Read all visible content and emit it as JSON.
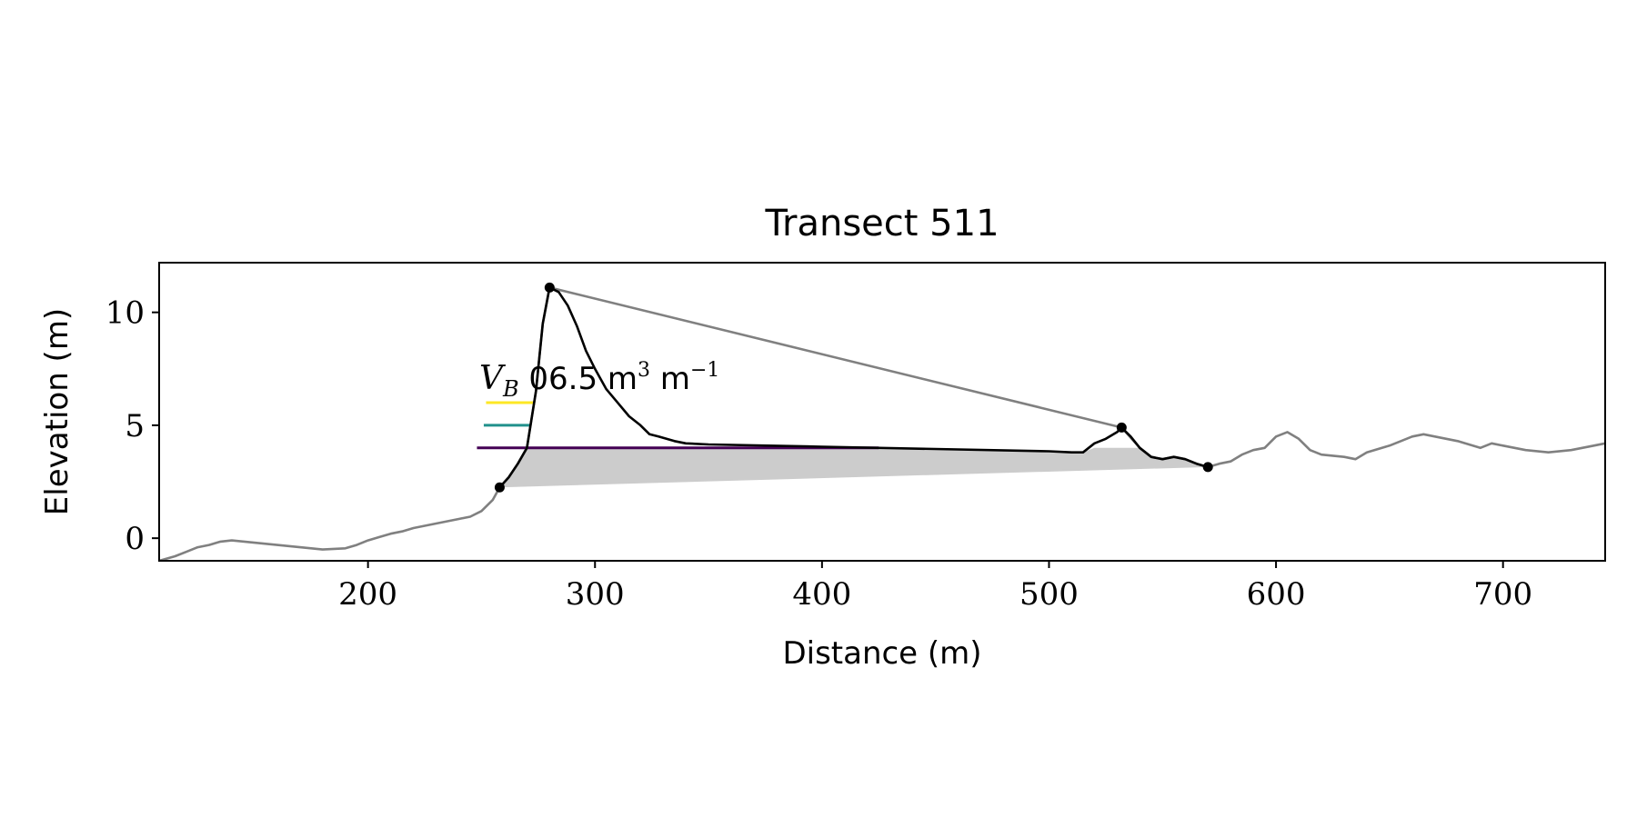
{
  "chart_data": {
    "type": "area",
    "title": "Transect 511",
    "xlabel": "Distance (m)",
    "ylabel": "Elevation (m)",
    "xlim": [
      108,
      745
    ],
    "ylim": [
      -1,
      12.2
    ],
    "xticks": [
      200,
      300,
      400,
      500,
      600,
      700
    ],
    "yticks": [
      0,
      5,
      10
    ],
    "xtick_labels": [
      "200",
      "300",
      "400",
      "500",
      "600",
      "700"
    ],
    "ytick_labels": [
      "0",
      "5",
      "10"
    ],
    "grid": false,
    "annotation": {
      "label": "V",
      "subscript": "B",
      "value_text": "06.5 m",
      "unit_exp1": "3",
      "unit_mid": "m",
      "unit_exp2": "−1",
      "x": 249,
      "y": 6.6
    },
    "colors": {
      "background_profile": "#808080",
      "dune_profile": "#000000",
      "below_base_fill": "#cccccc",
      "layer_top": "#fde725",
      "layer_mid": "#21918c",
      "layer_low": "#440154"
    },
    "levels": [
      {
        "y": 4.0,
        "x_start": 248,
        "color": "#440154"
      },
      {
        "y": 5.0,
        "x_start": 251,
        "color": "#21918c"
      },
      {
        "y": 6.0,
        "x_start": 252,
        "color": "#fde725"
      }
    ],
    "markers": [
      {
        "x": 258,
        "y": 2.25
      },
      {
        "x": 280,
        "y": 11.1
      },
      {
        "x": 532,
        "y": 4.9
      },
      {
        "x": 570,
        "y": 3.15
      }
    ],
    "background_profile": [
      [
        108,
        -1.0
      ],
      [
        115,
        -0.8
      ],
      [
        120,
        -0.6
      ],
      [
        125,
        -0.4
      ],
      [
        130,
        -0.3
      ],
      [
        135,
        -0.15
      ],
      [
        140,
        -0.1
      ],
      [
        150,
        -0.2
      ],
      [
        160,
        -0.3
      ],
      [
        170,
        -0.4
      ],
      [
        180,
        -0.5
      ],
      [
        190,
        -0.45
      ],
      [
        195,
        -0.3
      ],
      [
        200,
        -0.1
      ],
      [
        205,
        0.05
      ],
      [
        210,
        0.2
      ],
      [
        215,
        0.3
      ],
      [
        220,
        0.45
      ],
      [
        225,
        0.55
      ],
      [
        230,
        0.65
      ],
      [
        235,
        0.75
      ],
      [
        240,
        0.85
      ],
      [
        245,
        0.95
      ],
      [
        250,
        1.2
      ],
      [
        255,
        1.7
      ],
      [
        258,
        2.25
      ],
      [
        262,
        2.7
      ],
      [
        266,
        3.3
      ],
      [
        270,
        4.0
      ],
      [
        274,
        6.5
      ],
      [
        277,
        9.5
      ],
      [
        280,
        11.1
      ],
      [
        532,
        4.9
      ],
      [
        540,
        4.0
      ],
      [
        545,
        3.6
      ],
      [
        550,
        3.5
      ],
      [
        555,
        3.6
      ],
      [
        560,
        3.5
      ],
      [
        565,
        3.3
      ],
      [
        570,
        3.15
      ],
      [
        575,
        3.3
      ],
      [
        580,
        3.4
      ],
      [
        585,
        3.7
      ],
      [
        590,
        3.9
      ],
      [
        595,
        4.0
      ],
      [
        600,
        4.5
      ],
      [
        605,
        4.7
      ],
      [
        610,
        4.4
      ],
      [
        615,
        3.9
      ],
      [
        620,
        3.7
      ],
      [
        630,
        3.6
      ],
      [
        635,
        3.5
      ],
      [
        640,
        3.8
      ],
      [
        650,
        4.1
      ],
      [
        655,
        4.3
      ],
      [
        660,
        4.5
      ],
      [
        665,
        4.6
      ],
      [
        670,
        4.5
      ],
      [
        680,
        4.3
      ],
      [
        690,
        4.0
      ],
      [
        695,
        4.2
      ],
      [
        700,
        4.1
      ],
      [
        710,
        3.9
      ],
      [
        720,
        3.8
      ],
      [
        730,
        3.9
      ],
      [
        740,
        4.1
      ],
      [
        745,
        4.2
      ]
    ],
    "dune_profile": [
      [
        258,
        2.25
      ],
      [
        262,
        2.7
      ],
      [
        266,
        3.3
      ],
      [
        270,
        4.0
      ],
      [
        274,
        6.5
      ],
      [
        277,
        9.5
      ],
      [
        280,
        11.1
      ],
      [
        284,
        10.9
      ],
      [
        288,
        10.3
      ],
      [
        292,
        9.4
      ],
      [
        296,
        8.3
      ],
      [
        300,
        7.5
      ],
      [
        305,
        6.6
      ],
      [
        310,
        6.0
      ],
      [
        315,
        5.4
      ],
      [
        320,
        5.0
      ],
      [
        324,
        4.6
      ],
      [
        328,
        4.5
      ],
      [
        335,
        4.3
      ],
      [
        340,
        4.2
      ],
      [
        350,
        4.15
      ],
      [
        400,
        4.05
      ],
      [
        450,
        3.95
      ],
      [
        500,
        3.85
      ],
      [
        510,
        3.8
      ],
      [
        515,
        3.8
      ],
      [
        520,
        4.2
      ],
      [
        525,
        4.4
      ],
      [
        530,
        4.7
      ],
      [
        532,
        4.9
      ],
      [
        536,
        4.5
      ],
      [
        540,
        4.0
      ],
      [
        545,
        3.6
      ],
      [
        550,
        3.5
      ],
      [
        555,
        3.6
      ],
      [
        560,
        3.5
      ],
      [
        565,
        3.3
      ],
      [
        570,
        3.15
      ]
    ]
  }
}
